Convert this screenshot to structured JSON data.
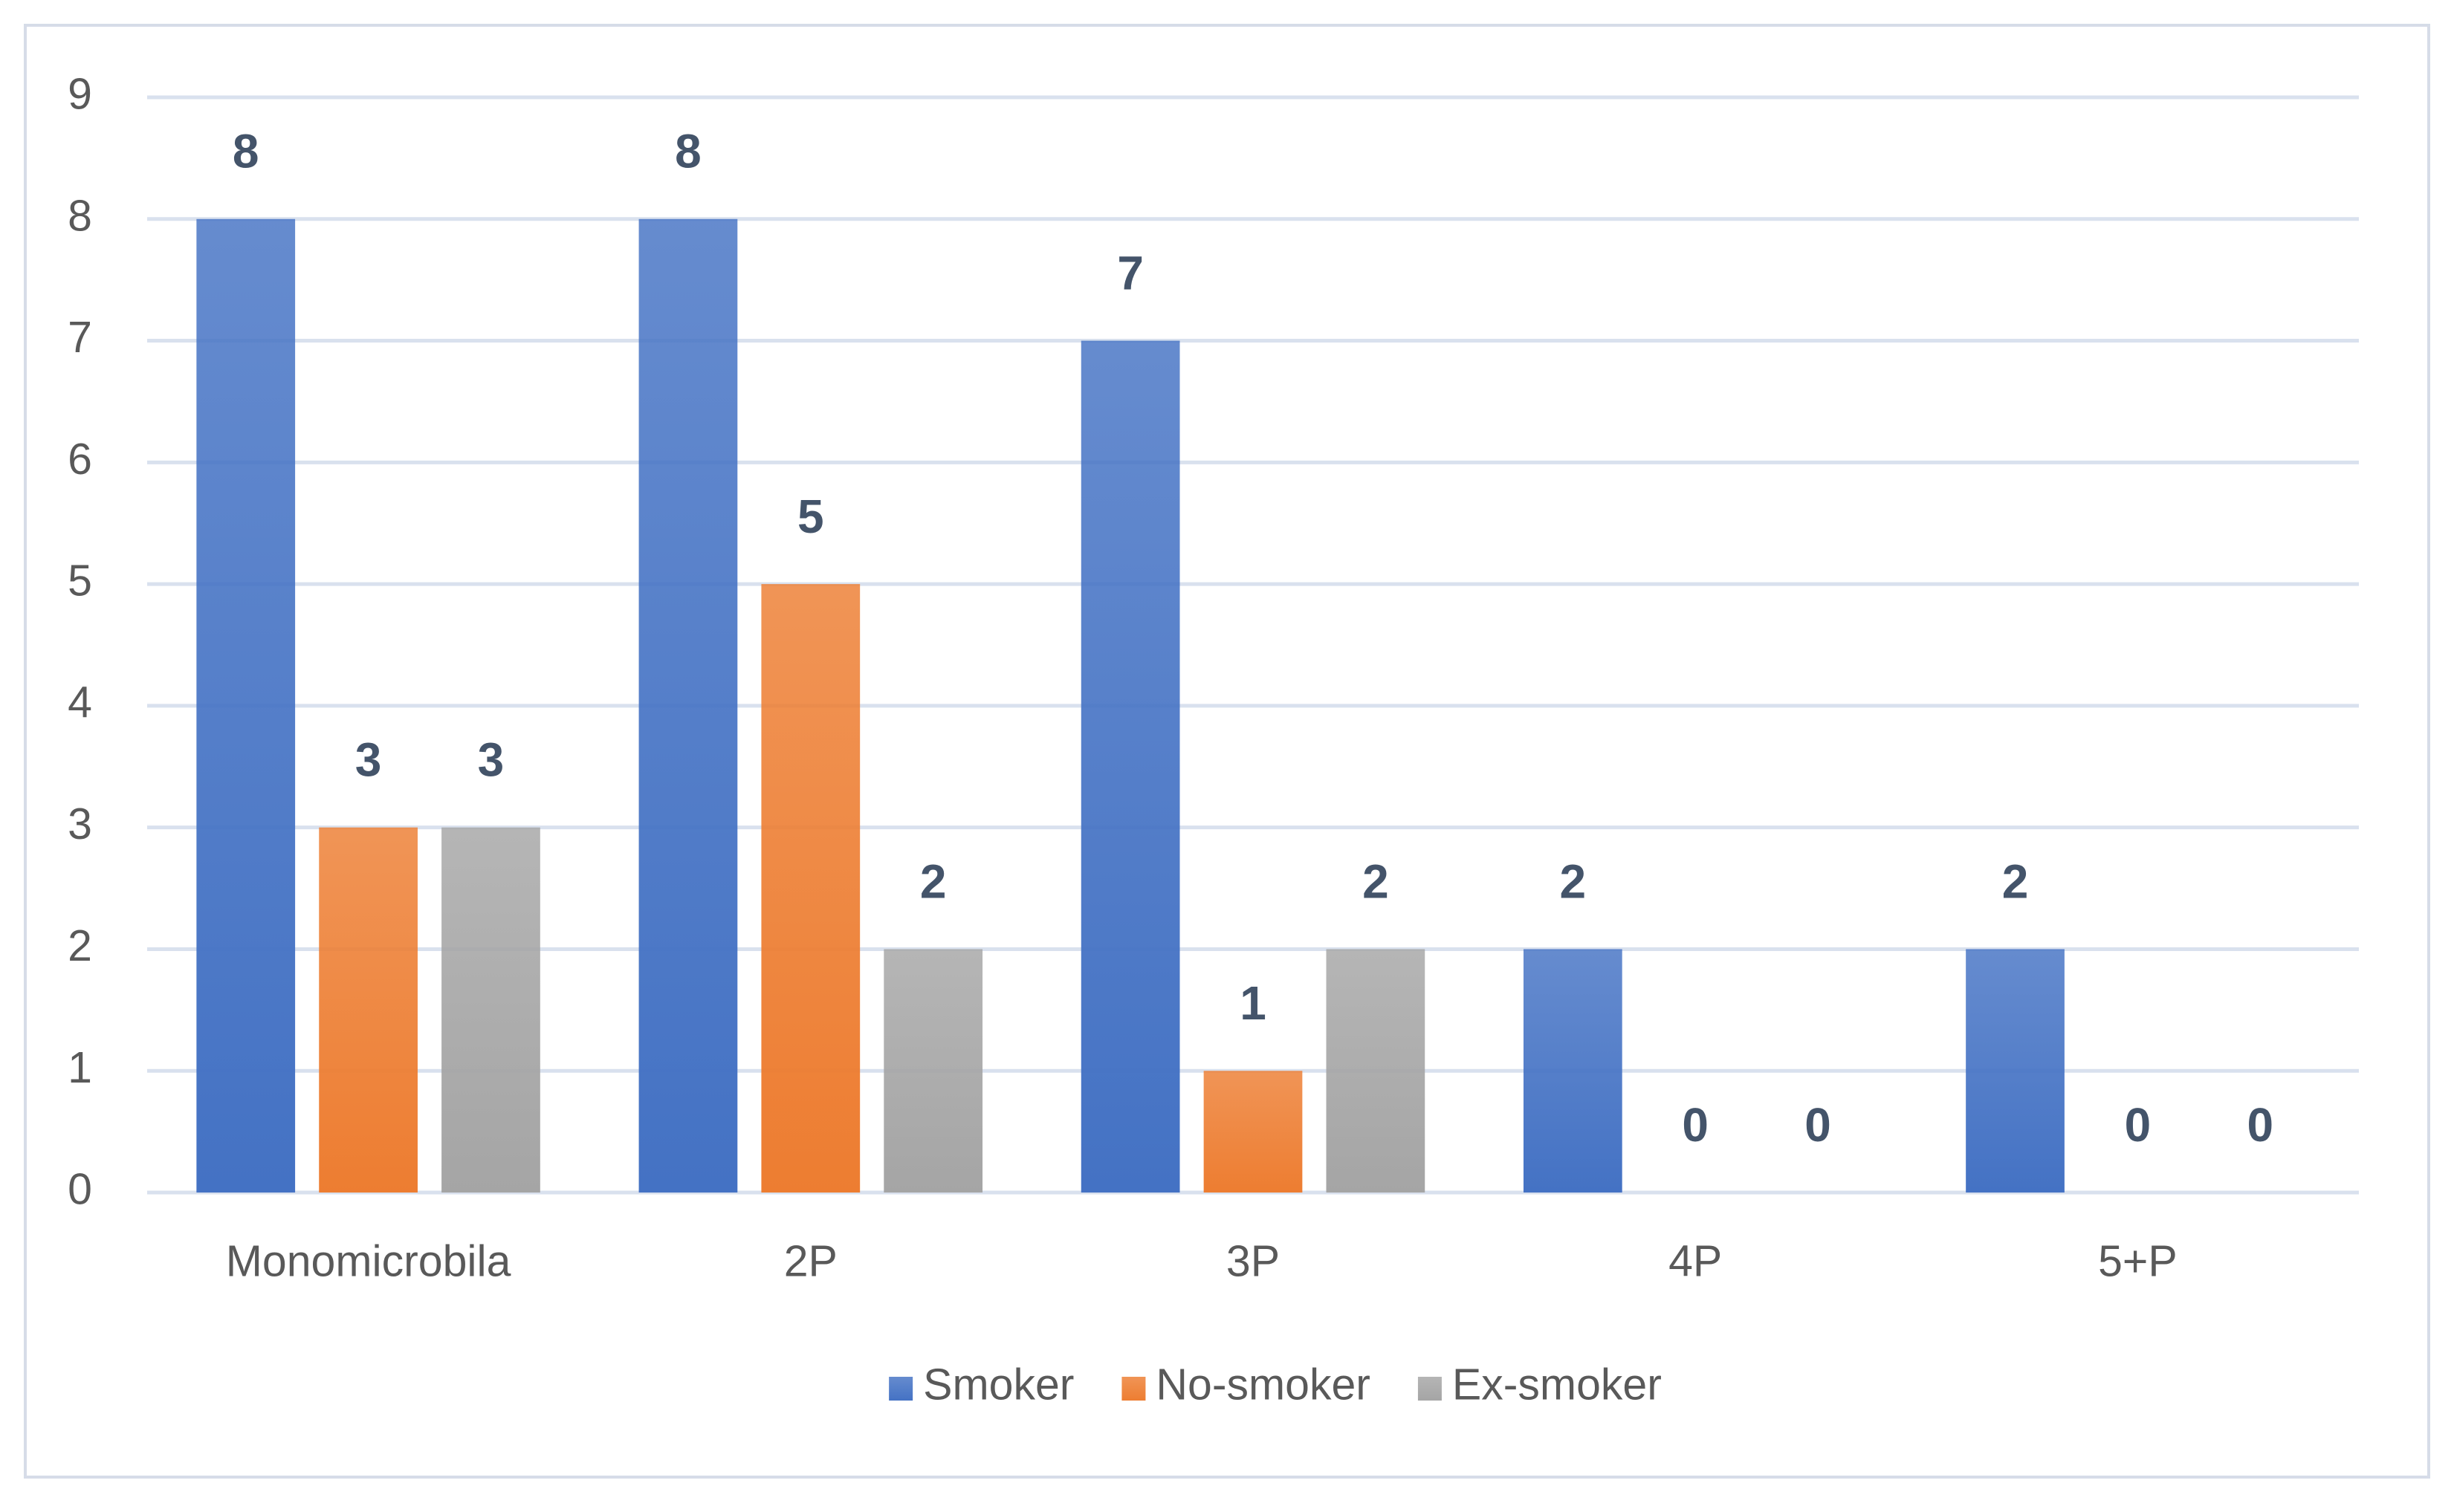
{
  "chart_data": {
    "type": "bar",
    "categories": [
      "Monomicrobila",
      "2P",
      "3P",
      "4P",
      "5+P"
    ],
    "series": [
      {
        "name": "Smoker",
        "color": "#4472c4",
        "values": [
          8,
          8,
          7,
          2,
          2
        ]
      },
      {
        "name": "No-smoker",
        "color": "#ed7d31",
        "values": [
          3,
          5,
          1,
          0,
          0
        ]
      },
      {
        "name": "Ex-smoker",
        "color": "#a5a5a5",
        "values": [
          3,
          2,
          2,
          0,
          0
        ]
      }
    ],
    "ylim": [
      0,
      9
    ],
    "yticks": [
      0,
      1,
      2,
      3,
      4,
      5,
      6,
      7,
      8,
      9
    ],
    "grid": true,
    "legend": "bottom"
  }
}
